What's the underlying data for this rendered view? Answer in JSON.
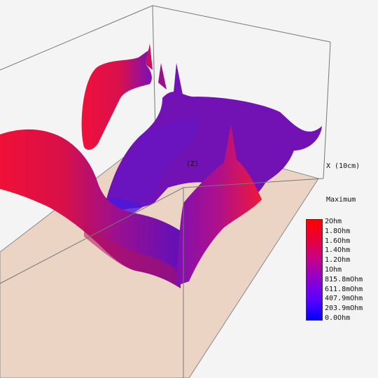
{
  "axis": {
    "x_label": "X (10cm)",
    "z_label": "(Z)"
  },
  "legend": {
    "title": "Maximum",
    "labels": [
      "2Ohm",
      "1.8Ohm",
      "1.6Ohm",
      "1.4Ohm",
      "1.2Ohm",
      "1Ohm",
      "815.8mOhm",
      "611.8mOhm",
      "407.9mOhm",
      "203.9mOhm",
      "0.0Ohm"
    ],
    "gradient": [
      "#ff0000",
      "#e8003a",
      "#c2008c",
      "#8a00d0",
      "#5a00ff",
      "#0000ff"
    ]
  },
  "colors": {
    "floor": "#ebd4c4",
    "high": "#e8103a",
    "mid": "#7a10b8",
    "low": "#3a10e8",
    "background": "#f4f4f4"
  }
}
